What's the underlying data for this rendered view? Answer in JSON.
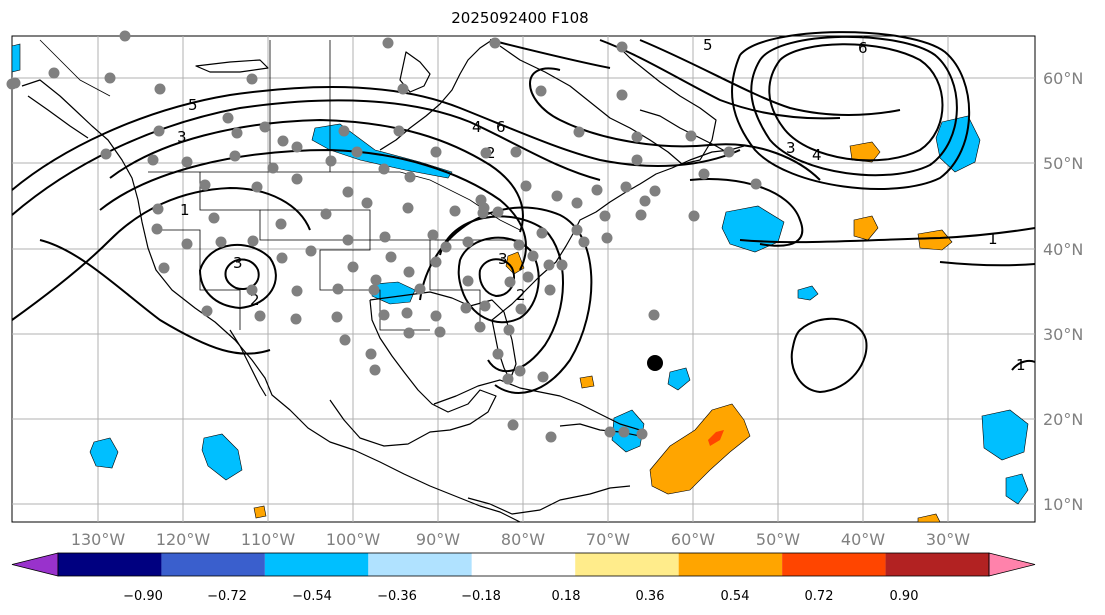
{
  "title": "2025092400 F108",
  "lon_labels": [
    "130°W",
    "120°W",
    "110°W",
    "100°W",
    "90°W",
    "80°W",
    "70°W",
    "60°W",
    "50°W",
    "40°W",
    "30°W"
  ],
  "lat_labels": [
    "60°N",
    "50°N",
    "40°N",
    "30°N",
    "20°N",
    "10°N"
  ],
  "colorbar": {
    "tick_labels": [
      "−0.90",
      "−0.72",
      "−0.54",
      "−0.36",
      "−0.18",
      "0.18",
      "0.36",
      "0.54",
      "0.72",
      "0.90"
    ],
    "colors": [
      "#9932cc",
      "#000080",
      "#3a5fcd",
      "#00bfff",
      "#b0e2ff",
      "#ffffff",
      "#ffec8b",
      "#ffa500",
      "#ff4500",
      "#b22222",
      "#ff82ab"
    ]
  },
  "contour_labels": [
    "5",
    "3",
    "1",
    "3",
    "2",
    "4",
    "6",
    "2",
    "3",
    "2",
    "5",
    "6",
    "3",
    "4",
    "1",
    "1"
  ],
  "colors": {
    "stations": "#808080",
    "marker": "#000000",
    "contour": "#000000"
  }
}
